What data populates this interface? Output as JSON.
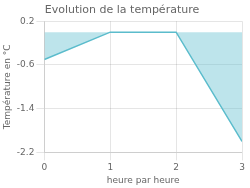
{
  "chart_data": {
    "type": "area",
    "title": "Evolution de la température",
    "xlabel": "heure par heure",
    "ylabel": "Température en °C",
    "x": [
      0,
      1,
      2,
      3
    ],
    "values": [
      -0.5,
      0.0,
      0.0,
      -2.0
    ],
    "color": "#5bbccc",
    "xlim": [
      0,
      3
    ],
    "ylim": [
      -2.2,
      0.2
    ],
    "xticks": [
      0,
      1,
      2,
      3
    ],
    "yticks": [
      0.2,
      -0.6,
      -1.4,
      -2.2
    ],
    "grid": true
  }
}
